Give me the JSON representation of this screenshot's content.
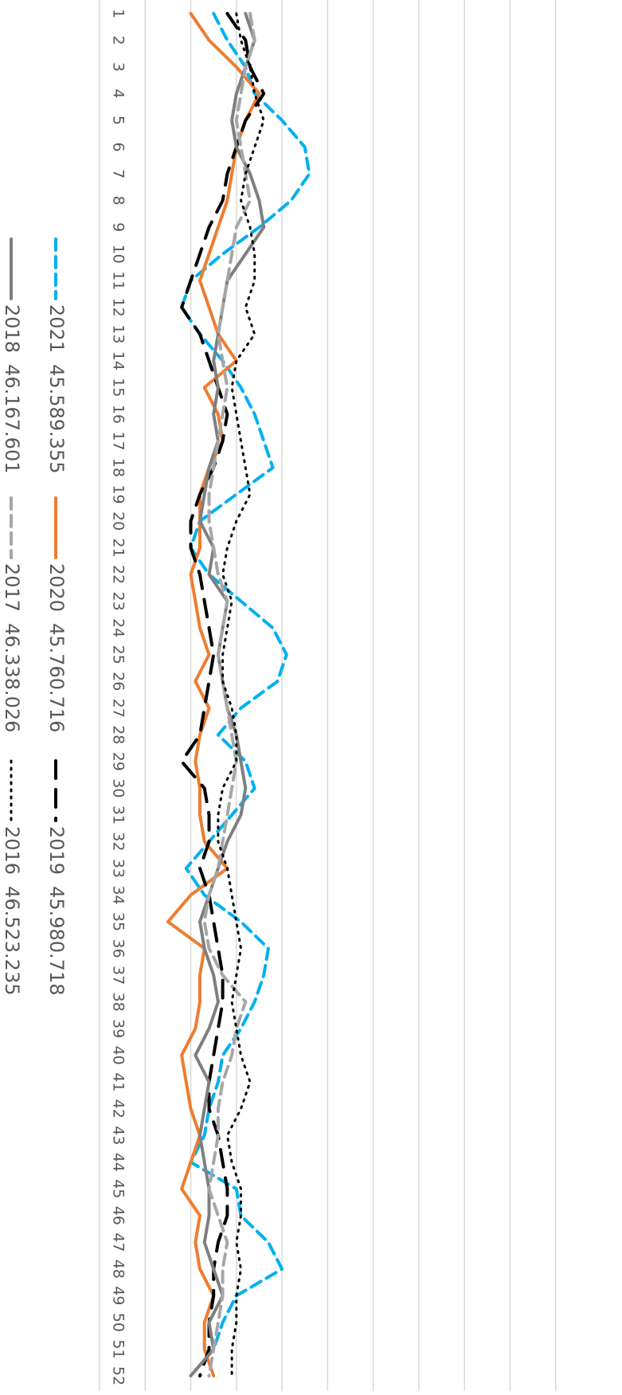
{
  "chart_data": {
    "type": "line",
    "orientation": "rotated-90-clockwise",
    "x": [
      "1",
      "2",
      "3",
      "4",
      "5",
      "6",
      "7",
      "8",
      "9",
      "10",
      "11",
      "12",
      "13",
      "14",
      "15",
      "16",
      "17",
      "18",
      "19",
      "20",
      "21",
      "22",
      "23",
      "24",
      "25",
      "26",
      "27",
      "28",
      "29",
      "30",
      "31",
      "32",
      "33",
      "34",
      "35",
      "36",
      "37",
      "38",
      "39",
      "40",
      "41",
      "42",
      "43",
      "44",
      "45",
      "46",
      "47",
      "48",
      "49",
      "50",
      "51",
      "52"
    ],
    "ylim": [
      0,
      1100000
    ],
    "grid": true,
    "legend_position": "bottom",
    "series": [
      {
        "name": "2021",
        "legend_total": "45.589.355",
        "color": "#00B0F0",
        "style": "dashed",
        "values": [
          850000,
          820000,
          780000,
          760000,
          700000,
          650000,
          640000,
          680000,
          750000,
          830000,
          900000,
          920000,
          880000,
          830000,
          790000,
          760000,
          740000,
          720000,
          800000,
          880000,
          900000,
          860000,
          790000,
          720000,
          690000,
          710000,
          790000,
          840000,
          780000,
          760000,
          810000,
          860000,
          910000,
          870000,
          790000,
          730000,
          740000,
          760000,
          790000,
          830000,
          840000,
          860000,
          870000,
          900000,
          800000,
          790000,
          730000,
          700000,
          800000,
          830000,
          850000,
          900000
        ]
      },
      {
        "name": "2020",
        "legend_total": "45.760.716",
        "color": "#ED7D31",
        "style": "solid",
        "values": [
          900000,
          860000,
          800000,
          750000,
          780000,
          800000,
          810000,
          820000,
          840000,
          860000,
          880000,
          860000,
          840000,
          800000,
          870000,
          840000,
          830000,
          860000,
          880000,
          880000,
          880000,
          900000,
          890000,
          880000,
          860000,
          890000,
          860000,
          880000,
          890000,
          880000,
          880000,
          870000,
          820000,
          900000,
          950000,
          870000,
          880000,
          880000,
          890000,
          920000,
          910000,
          900000,
          880000,
          900000,
          920000,
          880000,
          890000,
          880000,
          850000,
          870000,
          870000,
          850000
        ]
      },
      {
        "name": "2019",
        "legend_total": "45.980.718",
        "color": "#000000",
        "style": "long-dashed",
        "values": [
          820000,
          780000,
          770000,
          740000,
          780000,
          800000,
          820000,
          830000,
          860000,
          880000,
          900000,
          920000,
          880000,
          860000,
          840000,
          820000,
          830000,
          850000,
          880000,
          900000,
          900000,
          880000,
          870000,
          860000,
          850000,
          860000,
          870000,
          880000,
          920000,
          870000,
          860000,
          860000,
          880000,
          860000,
          850000,
          840000,
          830000,
          830000,
          840000,
          850000,
          860000,
          860000,
          840000,
          830000,
          820000,
          820000,
          840000,
          850000,
          850000,
          860000,
          860000,
          880000
        ]
      },
      {
        "name": "2018",
        "legend_total": "46.167.601",
        "color": "#7F7F7F",
        "style": "solid",
        "values": [
          780000,
          760000,
          780000,
          800000,
          810000,
          800000,
          770000,
          750000,
          740000,
          780000,
          820000,
          830000,
          840000,
          850000,
          840000,
          850000,
          840000,
          860000,
          870000,
          880000,
          850000,
          860000,
          820000,
          830000,
          840000,
          830000,
          820000,
          800000,
          790000,
          780000,
          790000,
          820000,
          840000,
          860000,
          880000,
          870000,
          850000,
          840000,
          860000,
          890000,
          860000,
          870000,
          880000,
          870000,
          860000,
          860000,
          870000,
          850000,
          830000,
          860000,
          850000,
          900000
        ]
      },
      {
        "name": "2017",
        "legend_total": "46.338.026",
        "color": "#A6A6A6",
        "style": "dashed",
        "values": [
          770000,
          760000,
          780000,
          790000,
          800000,
          790000,
          780000,
          770000,
          800000,
          810000,
          820000,
          830000,
          840000,
          830000,
          820000,
          830000,
          840000,
          850000,
          860000,
          860000,
          850000,
          840000,
          820000,
          830000,
          840000,
          830000,
          820000,
          810000,
          800000,
          810000,
          820000,
          830000,
          840000,
          860000,
          870000,
          860000,
          830000,
          780000,
          800000,
          810000,
          830000,
          840000,
          840000,
          850000,
          860000,
          840000,
          820000,
          830000,
          830000,
          840000,
          850000,
          860000
        ]
      },
      {
        "name": "2016",
        "legend_total": "46.523.235",
        "color": "#000000",
        "style": "dotted",
        "values": [
          800000,
          790000,
          770000,
          760000,
          740000,
          760000,
          780000,
          790000,
          770000,
          760000,
          760000,
          780000,
          760000,
          800000,
          810000,
          800000,
          790000,
          780000,
          770000,
          800000,
          820000,
          830000,
          810000,
          820000,
          830000,
          830000,
          810000,
          800000,
          800000,
          830000,
          840000,
          840000,
          820000,
          810000,
          800000,
          790000,
          800000,
          810000,
          800000,
          790000,
          770000,
          790000,
          820000,
          810000,
          790000,
          790000,
          800000,
          790000,
          800000,
          800000,
          810000,
          810000
        ]
      }
    ]
  }
}
